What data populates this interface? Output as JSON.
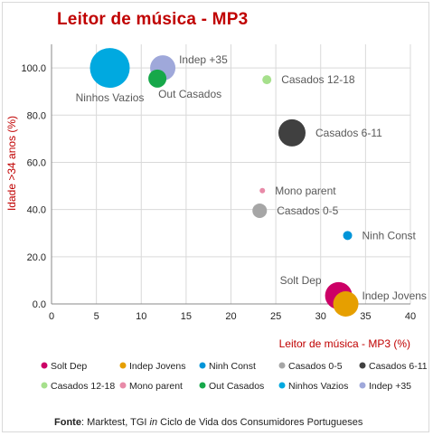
{
  "chart_data": {
    "type": "bubble",
    "title": "Leitor de música - MP3",
    "xlabel": "Leitor de música - MP3 (%)",
    "ylabel": "Idade >34 anos (%)",
    "xlim": [
      0,
      40
    ],
    "ylim": [
      0,
      110
    ],
    "xticks": [
      "0",
      "5",
      "10",
      "15",
      "20",
      "25",
      "30",
      "35",
      "40"
    ],
    "yticks": [
      "0.0",
      "20.0",
      "40.0",
      "60.0",
      "80.0",
      "100.0"
    ],
    "grid": true,
    "legend_position": "bottom",
    "series": [
      {
        "name": "Solt Dep",
        "label": "Solt Dep",
        "x": 32.0,
        "y": 3.5,
        "size": 15,
        "color": "#cc0066",
        "label_pos": "upper-left"
      },
      {
        "name": "Indep Jovens",
        "label": "Indep Jovens",
        "x": 32.8,
        "y": 0.0,
        "size": 14,
        "color": "#e69f00",
        "label_pos": "upper-right"
      },
      {
        "name": "Ninh Const",
        "label": "Ninh Const",
        "x": 33.0,
        "y": 29.0,
        "size": 5,
        "color": "#0095d9",
        "label_pos": "right"
      },
      {
        "name": "Casados 0-5",
        "label": "Casados 0-5",
        "x": 23.2,
        "y": 39.5,
        "size": 8,
        "color": "#a6a6a6",
        "label_pos": "right"
      },
      {
        "name": "Casados 6-11",
        "label": "Casados 6-11",
        "x": 26.8,
        "y": 72.5,
        "size": 15,
        "color": "#404040",
        "label_pos": "right"
      },
      {
        "name": "Casados  12-18",
        "label": "Casados  12-18",
        "x": 24.0,
        "y": 95.0,
        "size": 5,
        "color": "#a6e08c",
        "label_pos": "right"
      },
      {
        "name": "Mono parent",
        "label": "Mono parent",
        "x": 23.5,
        "y": 48.0,
        "size": 3,
        "color": "#e88aa8",
        "label_pos": "right"
      },
      {
        "name": "Out Casados",
        "label": "Out Casados",
        "x": 11.8,
        "y": 95.5,
        "size": 10,
        "color": "#16a84a",
        "label_pos": "lower-right"
      },
      {
        "name": "Ninhos Vazios",
        "label": "Ninhos Vazios",
        "x": 6.5,
        "y": 100.0,
        "size": 22,
        "color": "#00a9e0",
        "label_pos": "lower-left"
      },
      {
        "name": "Indep +35",
        "label": "Indep +35",
        "x": 12.4,
        "y": 100.0,
        "size": 14,
        "color": "#9fa8da",
        "label_pos": "upper-right"
      }
    ]
  },
  "legend": [
    {
      "name": "Solt Dep",
      "color": "#cc0066"
    },
    {
      "name": "Indep Jovens",
      "color": "#e69f00"
    },
    {
      "name": "Ninh Const",
      "color": "#0095d9"
    },
    {
      "name": "Casados 0-5",
      "color": "#a6a6a6"
    },
    {
      "name": "Casados 6-11",
      "color": "#404040"
    },
    {
      "name": "Casados  12-18",
      "color": "#a6e08c"
    },
    {
      "name": "Mono parent",
      "color": "#e88aa8"
    },
    {
      "name": "Out Casados",
      "color": "#16a84a"
    },
    {
      "name": "Ninhos Vazios",
      "color": "#00a9e0"
    },
    {
      "name": "Indep +35",
      "color": "#9fa8da"
    }
  ],
  "source": {
    "label": "Fonte",
    "text_before": ": Marktest, TGI ",
    "text_italic": "in",
    "text_after": " Ciclo de Vida dos Consumidores Portugueses"
  },
  "colors": {
    "title": "#c00000",
    "axis_label": "#c00000",
    "grid": "#d9d9d9",
    "tick_text": "#222222"
  }
}
